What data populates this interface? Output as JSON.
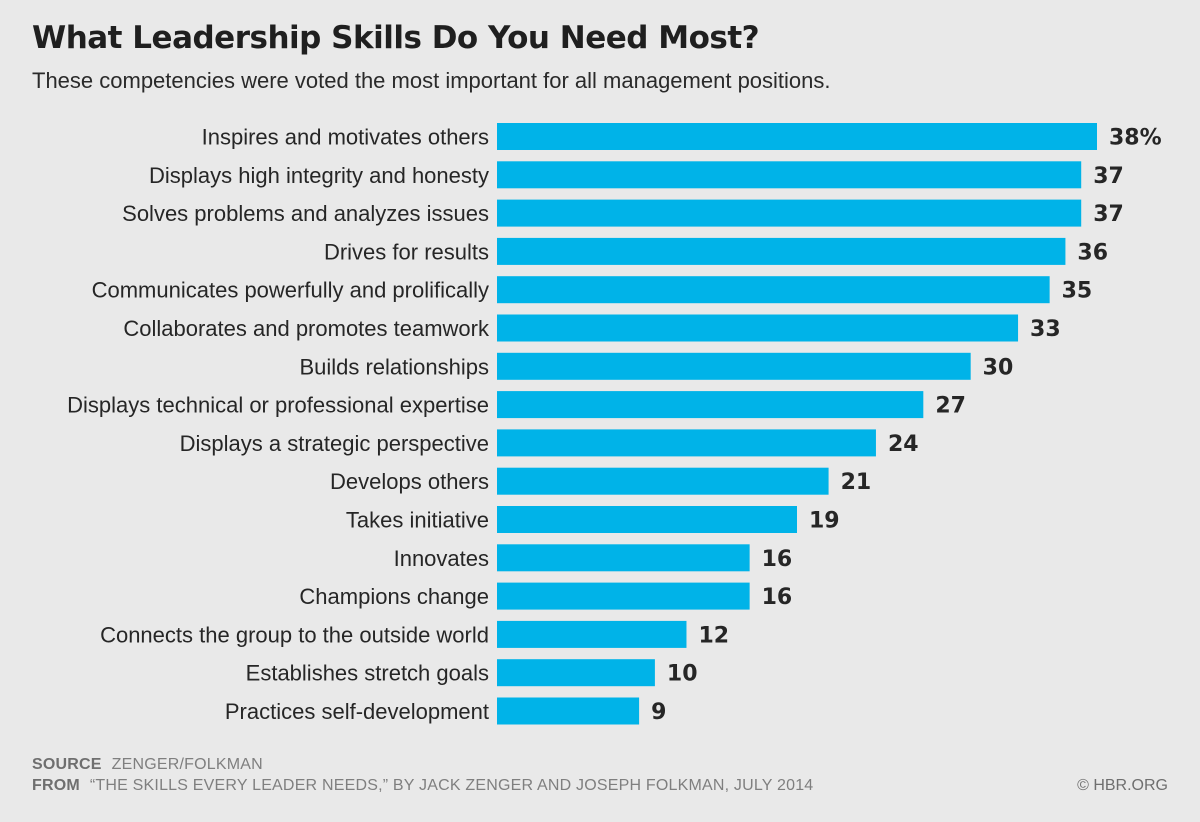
{
  "chart_data": {
    "type": "bar",
    "orientation": "horizontal",
    "title": "What Leadership Skills Do You Need Most?",
    "subtitle": "These competencies were voted the most important for all management positions.",
    "unit_suffix_first": "%",
    "categories": [
      "Inspires and motivates others",
      "Displays high integrity and honesty",
      "Solves problems and analyzes issues",
      "Drives for results",
      "Communicates powerfully and prolifically",
      "Collaborates and promotes teamwork",
      "Builds relationships",
      "Displays technical or professional expertise",
      "Displays a strategic perspective",
      "Develops others",
      "Takes initiative",
      "Innovates",
      "Champions change",
      "Connects the group to the outside world",
      "Establishes stretch goals",
      "Practices self-development"
    ],
    "values": [
      38,
      37,
      37,
      36,
      35,
      33,
      30,
      27,
      24,
      21,
      19,
      16,
      16,
      12,
      10,
      9
    ],
    "value_labels": [
      "38%",
      "37",
      "37",
      "36",
      "35",
      "33",
      "30",
      "27",
      "24",
      "21",
      "19",
      "16",
      "16",
      "12",
      "10",
      "9"
    ],
    "bar_color": "#00b3e8",
    "xlim": [
      0,
      38
    ]
  },
  "footer": {
    "source_key": "SOURCE",
    "source_value": "ZENGER/FOLKMAN",
    "from_key": "FROM",
    "from_value": "“THE SKILLS EVERY LEADER NEEDS,” BY JACK ZENGER AND JOSEPH FOLKMAN, JULY 2014",
    "copyright": "© HBR.ORG"
  }
}
